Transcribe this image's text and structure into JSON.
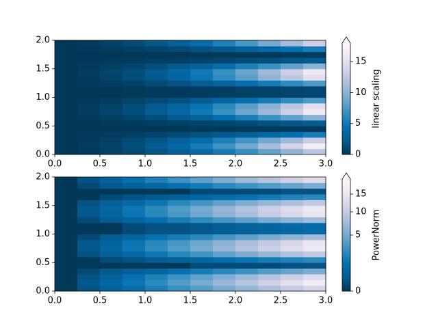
{
  "chart_data": [
    {
      "type": "heatmap",
      "norm": "linear",
      "x": [
        0,
        0.25,
        0.5,
        0.75,
        1,
        1.25,
        1.5,
        1.75,
        2,
        2.25,
        2.5,
        2.75,
        3
      ],
      "y": [
        0,
        0.1,
        0.2,
        0.3,
        0.4,
        0.5,
        0.6,
        0.7,
        0.8,
        0.9,
        1,
        1.1,
        1.2,
        1.3,
        1.4,
        1.5,
        1.6,
        1.7,
        1.8,
        1.9,
        2
      ],
      "z": [
        [
          0,
          0.2,
          0.6,
          1.1,
          1.9,
          2.8,
          3.9,
          5.2,
          6.7,
          8.3,
          10.2,
          12.2
        ],
        [
          0,
          0.3,
          0.8,
          1.5,
          2.5,
          3.8,
          5.3,
          7.0,
          9.0,
          11.3,
          13.8,
          16.5
        ],
        [
          0,
          0.2,
          0.6,
          1.2,
          2.0,
          3.0,
          4.2,
          5.6,
          7.2,
          9.0,
          11.0,
          13.2
        ],
        [
          0,
          0.1,
          0.3,
          0.5,
          0.8,
          1.2,
          1.7,
          2.3,
          2.9,
          3.7,
          4.5,
          5.4
        ],
        [
          0,
          0,
          0,
          0,
          0,
          0,
          0.1,
          0.1,
          0.1,
          0.1,
          0.2,
          0.2
        ],
        [
          0,
          0,
          0.1,
          0.2,
          0.4,
          0.6,
          0.8,
          1.0,
          1.3,
          1.7,
          2.0,
          2.4
        ],
        [
          0,
          0.2,
          0.5,
          0.9,
          1.5,
          2.3,
          3.2,
          4.3,
          5.5,
          6.9,
          8.4,
          10.0
        ],
        [
          0,
          0.3,
          0.8,
          1.5,
          2.5,
          3.7,
          5.1,
          6.8,
          8.8,
          10.9,
          13.4,
          16.0
        ],
        [
          0,
          0.3,
          0.7,
          1.4,
          2.3,
          3.4,
          4.7,
          6.3,
          8.1,
          10.1,
          12.4,
          14.9
        ],
        [
          0,
          0.1,
          0.4,
          0.7,
          1.2,
          1.7,
          2.4,
          3.3,
          4.2,
          5.2,
          6.4,
          7.6
        ],
        [
          0,
          0,
          0,
          0.1,
          0.2,
          0.2,
          0.3,
          0.4,
          0.5,
          0.7,
          0.8,
          1.0
        ],
        [
          0,
          0,
          0,
          0.1,
          0.2,
          0.2,
          0.3,
          0.4,
          0.6,
          0.7,
          0.9,
          1.0
        ],
        [
          0,
          0.1,
          0.4,
          0.7,
          1.2,
          1.8,
          2.5,
          3.3,
          4.2,
          5.3,
          6.4,
          7.7
        ],
        [
          0,
          0.3,
          0.7,
          1.4,
          2.3,
          3.4,
          4.8,
          6.3,
          8.1,
          10.2,
          12.4,
          14.9
        ],
        [
          0,
          0.3,
          0.8,
          1.5,
          2.4,
          3.7,
          5.1,
          6.8,
          8.7,
          10.9,
          13.3,
          16.0
        ],
        [
          0,
          0.2,
          0.5,
          0.9,
          1.5,
          2.3,
          3.2,
          4.2,
          5.5,
          6.8,
          8.3,
          10.0
        ],
        [
          0,
          0,
          0.1,
          0.2,
          0.4,
          0.5,
          0.8,
          1.0,
          1.3,
          1.6,
          2.0,
          2.4
        ],
        [
          0,
          0,
          0,
          0,
          0,
          0,
          0.1,
          0.1,
          0.1,
          0.1,
          0.2,
          0.2
        ],
        [
          0,
          0.1,
          0.3,
          0.5,
          0.8,
          1.2,
          1.7,
          2.3,
          3.0,
          3.7,
          4.5,
          5.4
        ],
        [
          0,
          0.2,
          0.6,
          1.2,
          2.0,
          3.0,
          4.2,
          5.6,
          7.3,
          9.1,
          11.1,
          13.3
        ]
      ],
      "xlim": [
        0,
        3
      ],
      "ylim": [
        0,
        2
      ],
      "xticks": [
        {
          "value": 0,
          "label": "0.0"
        },
        {
          "value": 0.5,
          "label": "0.5"
        },
        {
          "value": 1,
          "label": "1.0"
        },
        {
          "value": 1.5,
          "label": "1.5"
        },
        {
          "value": 2,
          "label": "2.0"
        },
        {
          "value": 2.5,
          "label": "2.5"
        },
        {
          "value": 3,
          "label": "3.0"
        }
      ],
      "yticks": [
        {
          "value": 0,
          "label": "0.0"
        },
        {
          "value": 0.5,
          "label": "0.5"
        },
        {
          "value": 1,
          "label": "1.0"
        },
        {
          "value": 1.5,
          "label": "1.5"
        },
        {
          "value": 2,
          "label": "2.0"
        }
      ],
      "colormap": [
        "#023858",
        "#045a8d",
        "#0570b0",
        "#3690c0",
        "#74a9cf",
        "#a6bddb",
        "#d0d1e6",
        "#ece7f2",
        "#fff7fb"
      ],
      "colorbar": {
        "label": "linear scaling",
        "lim": [
          0,
          18
        ],
        "ticks": [
          0,
          5,
          10,
          15
        ],
        "extend": "max"
      }
    },
    {
      "type": "heatmap",
      "norm": "power",
      "gamma": 0.5,
      "x": [
        0,
        0.25,
        0.5,
        0.75,
        1,
        1.25,
        1.5,
        1.75,
        2,
        2.25,
        2.5,
        2.75,
        3
      ],
      "y": [
        0,
        0.1,
        0.2,
        0.3,
        0.4,
        0.5,
        0.6,
        0.7,
        0.8,
        0.9,
        1,
        1.1,
        1.2,
        1.3,
        1.4,
        1.5,
        1.6,
        1.7,
        1.8,
        1.9,
        2
      ],
      "z": [
        [
          0,
          0.2,
          0.6,
          1.1,
          1.9,
          2.8,
          3.9,
          5.2,
          6.7,
          8.3,
          10.2,
          12.2
        ],
        [
          0,
          0.3,
          0.8,
          1.5,
          2.5,
          3.8,
          5.3,
          7.0,
          9.0,
          11.3,
          13.8,
          16.5
        ],
        [
          0,
          0.2,
          0.6,
          1.2,
          2.0,
          3.0,
          4.2,
          5.6,
          7.2,
          9.0,
          11.0,
          13.2
        ],
        [
          0,
          0.1,
          0.3,
          0.5,
          0.8,
          1.2,
          1.7,
          2.3,
          2.9,
          3.7,
          4.5,
          5.4
        ],
        [
          0,
          0,
          0,
          0,
          0,
          0,
          0.1,
          0.1,
          0.1,
          0.1,
          0.2,
          0.2
        ],
        [
          0,
          0,
          0.1,
          0.2,
          0.4,
          0.6,
          0.8,
          1.0,
          1.3,
          1.7,
          2.0,
          2.4
        ],
        [
          0,
          0.2,
          0.5,
          0.9,
          1.5,
          2.3,
          3.2,
          4.3,
          5.5,
          6.9,
          8.4,
          10.0
        ],
        [
          0,
          0.3,
          0.8,
          1.5,
          2.5,
          3.7,
          5.1,
          6.8,
          8.8,
          10.9,
          13.4,
          16.0
        ],
        [
          0,
          0.3,
          0.7,
          1.4,
          2.3,
          3.4,
          4.7,
          6.3,
          8.1,
          10.1,
          12.4,
          14.9
        ],
        [
          0,
          0.1,
          0.4,
          0.7,
          1.2,
          1.7,
          2.4,
          3.3,
          4.2,
          5.2,
          6.4,
          7.6
        ],
        [
          0,
          0,
          0,
          0.1,
          0.2,
          0.2,
          0.3,
          0.4,
          0.5,
          0.7,
          0.8,
          1.0
        ],
        [
          0,
          0,
          0,
          0.1,
          0.2,
          0.2,
          0.3,
          0.4,
          0.6,
          0.7,
          0.9,
          1.0
        ],
        [
          0,
          0.1,
          0.4,
          0.7,
          1.2,
          1.8,
          2.5,
          3.3,
          4.2,
          5.3,
          6.4,
          7.7
        ],
        [
          0,
          0.3,
          0.7,
          1.4,
          2.3,
          3.4,
          4.8,
          6.3,
          8.1,
          10.2,
          12.4,
          14.9
        ],
        [
          0,
          0.3,
          0.8,
          1.5,
          2.4,
          3.7,
          5.1,
          6.8,
          8.7,
          10.9,
          13.3,
          16.0
        ],
        [
          0,
          0.2,
          0.5,
          0.9,
          1.5,
          2.3,
          3.2,
          4.2,
          5.5,
          6.8,
          8.3,
          10.0
        ],
        [
          0,
          0,
          0.1,
          0.2,
          0.4,
          0.5,
          0.8,
          1.0,
          1.3,
          1.6,
          2.0,
          2.4
        ],
        [
          0,
          0,
          0,
          0,
          0,
          0,
          0.1,
          0.1,
          0.1,
          0.1,
          0.2,
          0.2
        ],
        [
          0,
          0.1,
          0.3,
          0.5,
          0.8,
          1.2,
          1.7,
          2.3,
          3.0,
          3.7,
          4.5,
          5.4
        ],
        [
          0,
          0.2,
          0.6,
          1.2,
          2.0,
          3.0,
          4.2,
          5.6,
          7.3,
          9.1,
          11.1,
          13.3
        ]
      ],
      "xlim": [
        0,
        3
      ],
      "ylim": [
        0,
        2
      ],
      "xticks": [
        {
          "value": 0,
          "label": "0.0"
        },
        {
          "value": 0.5,
          "label": "0.5"
        },
        {
          "value": 1,
          "label": "1.0"
        },
        {
          "value": 1.5,
          "label": "1.5"
        },
        {
          "value": 2,
          "label": "2.0"
        },
        {
          "value": 2.5,
          "label": "2.5"
        },
        {
          "value": 3,
          "label": "3.0"
        }
      ],
      "yticks": [
        {
          "value": 0,
          "label": "0.0"
        },
        {
          "value": 0.5,
          "label": "0.5"
        },
        {
          "value": 1,
          "label": "1.0"
        },
        {
          "value": 1.5,
          "label": "1.5"
        },
        {
          "value": 2,
          "label": "2.0"
        }
      ],
      "colormap": [
        "#023858",
        "#045a8d",
        "#0570b0",
        "#3690c0",
        "#74a9cf",
        "#a6bddb",
        "#d0d1e6",
        "#ece7f2",
        "#fff7fb"
      ],
      "colorbar": {
        "label": "PowerNorm",
        "lim": [
          0,
          20
        ],
        "ticks": [
          0,
          5,
          10,
          15
        ],
        "extend": "max"
      }
    }
  ]
}
